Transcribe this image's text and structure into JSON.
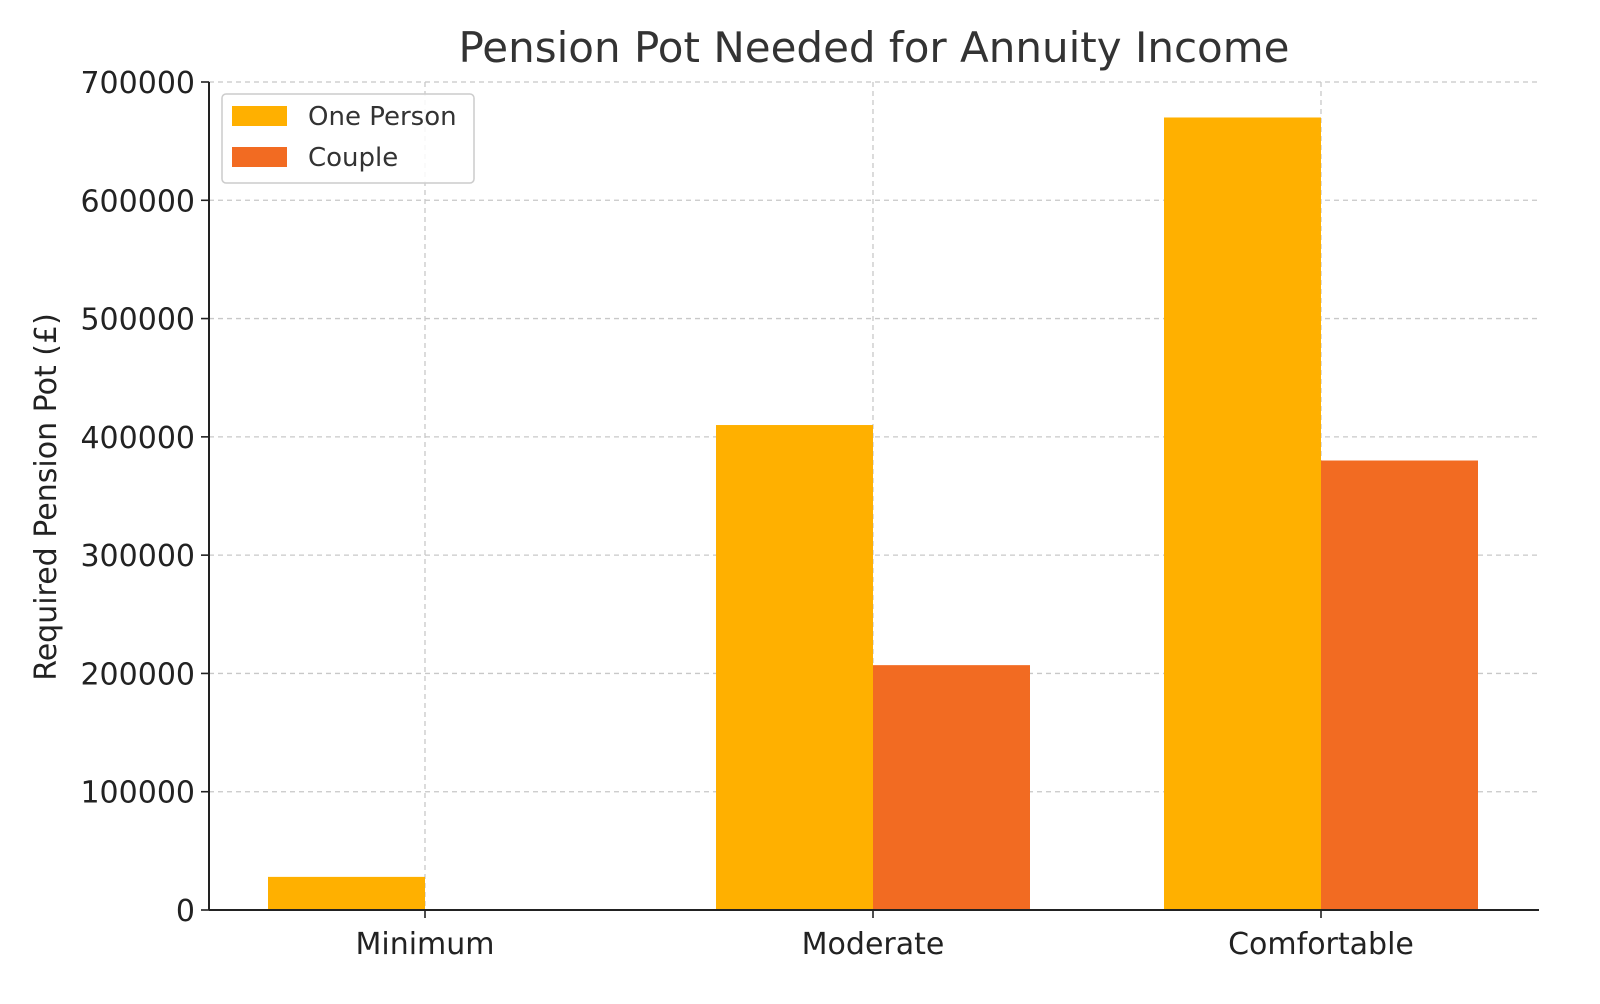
{
  "chart_data": {
    "type": "bar",
    "title": "Pension Pot Needed for Annuity Income",
    "xlabel": "",
    "ylabel": "Required Pension Pot (£)",
    "categories": [
      "Minimum",
      "Moderate",
      "Comfortable"
    ],
    "series": [
      {
        "name": "One Person",
        "values": [
          28000,
          410000,
          670000
        ],
        "color": "#FFB000"
      },
      {
        "name": "Couple",
        "values": [
          0,
          207000,
          380000
        ],
        "color": "#F26B22"
      }
    ],
    "ylim": [
      0,
      700000
    ],
    "yticks": [
      "0",
      "100000",
      "200000",
      "300000",
      "400000",
      "500000",
      "600000",
      "700000"
    ],
    "grid": true,
    "legend_position": "top-left"
  }
}
